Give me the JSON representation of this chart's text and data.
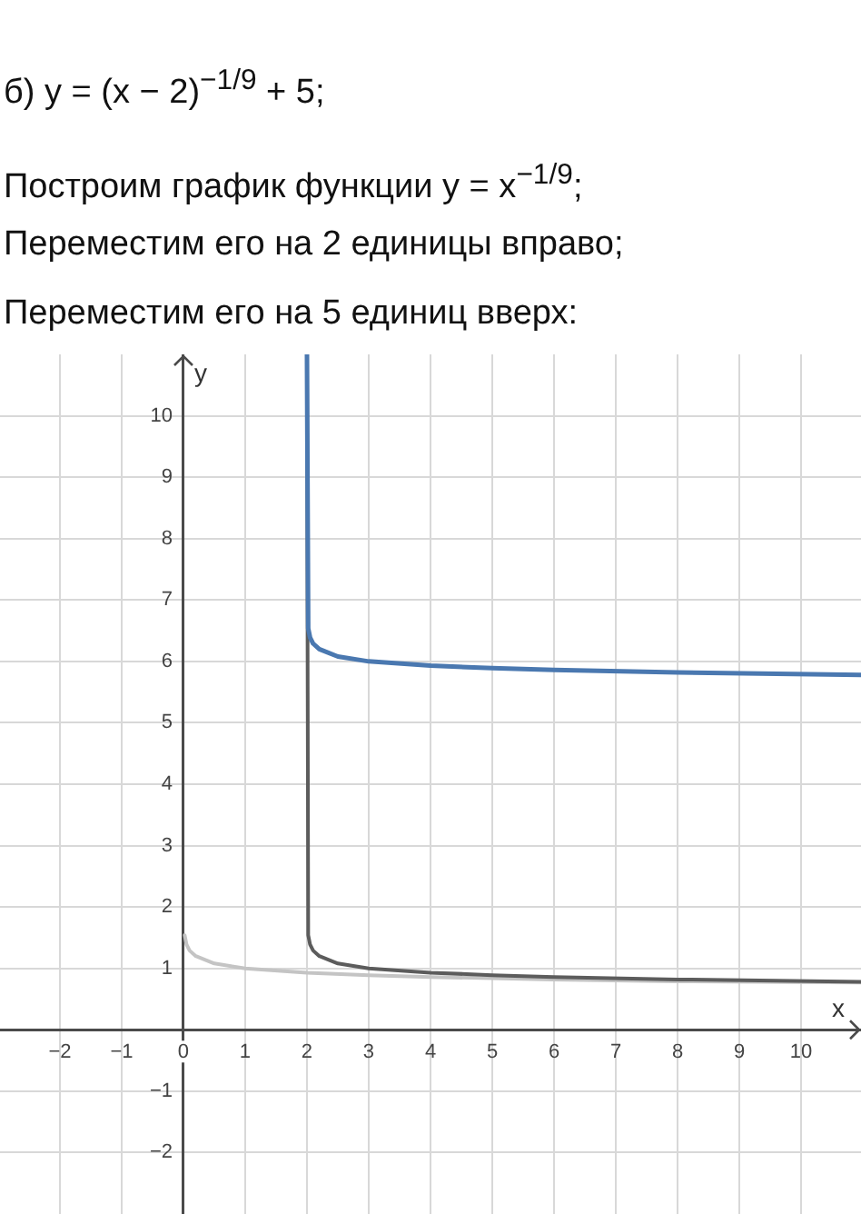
{
  "chart_data": {
    "type": "line",
    "title": "б) y = (x − 2)$^{−1/9}$ + 5;",
    "annotations": [
      "Построим график функции y = x$^{−1/9}$;",
      "Переместим его на 2 единицы вправо;",
      "Переместим его на 5 единиц вверх:"
    ],
    "xlabel": "x",
    "ylabel": "y",
    "xlim": [
      -2.97,
      10.97
    ],
    "ylim": [
      -3,
      11
    ],
    "xticks": [
      {
        "value": -2,
        "label": "−2"
      },
      {
        "value": -1,
        "label": "−1"
      },
      0,
      1,
      2,
      3,
      4,
      5,
      6,
      7,
      8,
      9,
      10
    ],
    "yticks": [
      {
        "value": -2,
        "label": "−2"
      },
      {
        "value": -1,
        "label": "−1"
      },
      1,
      2,
      3,
      4,
      5,
      6,
      7,
      8,
      9,
      10
    ],
    "grid": true,
    "marker": "none",
    "series": [
      {
        "color": "#c4c4c4",
        "x": [
          0.02,
          0.05,
          0.1,
          0.2,
          0.5,
          1,
          2,
          3,
          4,
          5,
          6,
          8,
          10.97
        ],
        "values": [
          1.54,
          1.39,
          1.29,
          1.2,
          1.08,
          1,
          0.93,
          0.89,
          0.86,
          0.84,
          0.82,
          0.79,
          0.77
        ]
      },
      {
        "color": "#5c5c5c",
        "x": [
          2,
          2.02,
          2.05,
          2.1,
          2.2,
          2.5,
          3,
          4,
          5,
          6,
          8,
          10.97
        ],
        "values": [
          11,
          1.54,
          1.39,
          1.29,
          1.2,
          1.08,
          1,
          0.93,
          0.89,
          0.86,
          0.82,
          0.78
        ]
      },
      {
        "color": "#4a78b0",
        "x": [
          2,
          2.02,
          2.05,
          2.1,
          2.2,
          2.5,
          3,
          4,
          5,
          6,
          8,
          10.97
        ],
        "values": [
          11,
          6.54,
          6.39,
          6.29,
          6.2,
          6.08,
          6,
          5.93,
          5.89,
          5.86,
          5.82,
          5.78
        ]
      }
    ]
  }
}
